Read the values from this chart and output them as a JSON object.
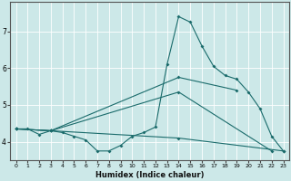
{
  "title": "",
  "xlabel": "Humidex (Indice chaleur)",
  "bg_color": "#cce8e8",
  "line_color": "#1a6b6b",
  "grid_color": "#ffffff",
  "xlim": [
    -0.5,
    23.5
  ],
  "ylim": [
    3.5,
    7.8
  ],
  "xticks": [
    0,
    1,
    2,
    3,
    4,
    5,
    6,
    7,
    8,
    9,
    10,
    11,
    12,
    13,
    14,
    15,
    16,
    17,
    18,
    19,
    20,
    21,
    22,
    23
  ],
  "yticks": [
    4,
    5,
    6,
    7
  ],
  "series": [
    {
      "name": "main_curve",
      "x": [
        0,
        1,
        2,
        3,
        4,
        5,
        6,
        7,
        8,
        9,
        10,
        11,
        12,
        13,
        14,
        15,
        16,
        17,
        18,
        19,
        20,
        21,
        22,
        23
      ],
      "y": [
        4.35,
        4.35,
        4.2,
        4.3,
        4.25,
        4.15,
        4.05,
        3.75,
        3.75,
        3.9,
        4.15,
        4.25,
        4.4,
        6.1,
        7.4,
        7.25,
        6.6,
        6.05,
        5.8,
        5.7,
        5.35,
        4.9,
        4.15,
        3.75
      ]
    },
    {
      "name": "line_upper",
      "x": [
        0,
        3,
        14,
        19
      ],
      "y": [
        4.35,
        4.3,
        5.75,
        5.4
      ]
    },
    {
      "name": "line_mid",
      "x": [
        0,
        3,
        14,
        22
      ],
      "y": [
        4.35,
        4.3,
        5.35,
        3.75
      ]
    },
    {
      "name": "line_lower",
      "x": [
        0,
        3,
        14,
        23
      ],
      "y": [
        4.35,
        4.3,
        4.1,
        3.75
      ]
    }
  ]
}
